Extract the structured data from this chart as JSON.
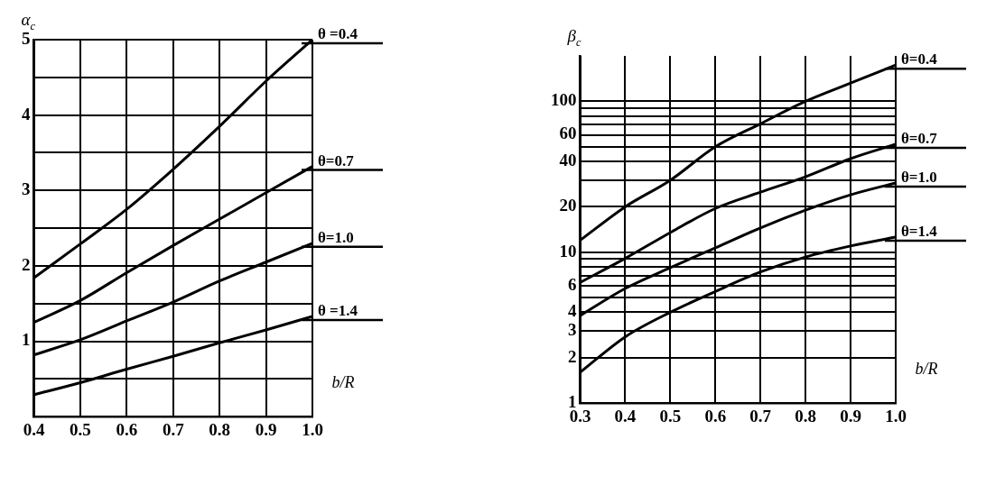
{
  "chart_data": [
    {
      "type": "line",
      "xlabel": "b/R",
      "ylabel": "α$_{c}$",
      "x": [
        0.4,
        0.5,
        0.6,
        0.7,
        0.8,
        0.9,
        1.0
      ],
      "xlim": [
        0.4,
        1.0
      ],
      "ylim": [
        0,
        5
      ],
      "xticks": [
        0.4,
        0.5,
        0.6,
        0.7,
        0.8,
        0.9,
        {
          "value": 1.0,
          "label": "1.0"
        }
      ],
      "yticks": [
        {
          "value": 0,
          "label": null
        },
        {
          "value": 0.5,
          "label": null
        },
        1,
        {
          "value": 1.5,
          "label": null
        },
        2,
        {
          "value": 2.5,
          "label": null
        },
        3,
        {
          "value": 3.5,
          "label": null
        },
        4,
        {
          "value": 4.5,
          "label": null
        },
        5
      ],
      "grid": true,
      "series": [
        {
          "name": "θ =0.4",
          "color": "#000000",
          "values": [
            1.84,
            2.29,
            2.75,
            3.28,
            3.85,
            4.45,
            5.0
          ]
        },
        {
          "name": "θ=0.7",
          "color": "#000000",
          "values": [
            1.25,
            1.54,
            1.91,
            2.27,
            2.62,
            2.97,
            3.32
          ]
        },
        {
          "name": "θ=1.0",
          "color": "#000000",
          "values": [
            0.82,
            1.02,
            1.27,
            1.52,
            1.8,
            2.05,
            2.3
          ]
        },
        {
          "name": "θ =1.4",
          "color": "#000000",
          "values": [
            0.29,
            0.45,
            0.63,
            0.8,
            0.98,
            1.15,
            1.33
          ]
        }
      ]
    },
    {
      "type": "line",
      "xlabel": "b/R",
      "ylabel": "β$_{c}$",
      "x": [
        0.3,
        0.4,
        0.5,
        0.6,
        0.7,
        0.8,
        0.9,
        1.0
      ],
      "xlim": [
        0.3,
        1.0
      ],
      "ylim": [
        1,
        200
      ],
      "log": "y",
      "xticks": [
        0.3,
        0.4,
        0.5,
        0.6,
        0.7,
        0.8,
        0.9,
        {
          "value": 1.0,
          "label": "1.0"
        }
      ],
      "yticks": [
        1,
        2,
        3,
        4,
        {
          "value": 5,
          "label": null
        },
        6,
        {
          "value": 7,
          "label": null
        },
        {
          "value": 8,
          "label": null
        },
        {
          "value": 9,
          "label": null
        },
        10,
        20,
        {
          "value": 30,
          "label": null
        },
        40,
        {
          "value": 50,
          "label": null
        },
        60,
        {
          "value": 70,
          "label": null
        },
        {
          "value": 80,
          "label": null
        },
        {
          "value": 90,
          "label": null
        },
        100
      ],
      "grid": true,
      "series": [
        {
          "name": "θ=0.4",
          "color": "#000000",
          "values": [
            12,
            20,
            30,
            50,
            71,
            100,
            132,
            174
          ]
        },
        {
          "name": "θ=0.7",
          "color": "#000000",
          "values": [
            6.3,
            9.1,
            13.5,
            19.5,
            25,
            31.6,
            41.7,
            52
          ]
        },
        {
          "name": "θ=1.0",
          "color": "#000000",
          "values": [
            3.8,
            5.75,
            7.9,
            10.7,
            14.5,
            19,
            24,
            28.8
          ]
        },
        {
          "name": "θ=1.4",
          "color": "#000000",
          "values": [
            1.6,
            2.75,
            4,
            5.5,
            7.4,
            9.3,
            11,
            12.6
          ]
        }
      ]
    }
  ]
}
